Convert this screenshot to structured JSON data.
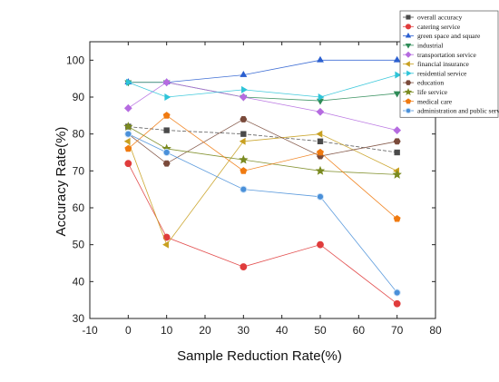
{
  "chart_data": {
    "type": "line",
    "xlabel": "Sample Reduction Rate(%)",
    "ylabel": "Accuracy Rate(%)",
    "xlim": [
      -10,
      80
    ],
    "ylim": [
      30,
      105
    ],
    "xticks": [
      -10,
      0,
      10,
      20,
      30,
      40,
      50,
      60,
      70,
      80
    ],
    "yticks": [
      30,
      40,
      50,
      60,
      70,
      80,
      90,
      100
    ],
    "legend_position": "top-right",
    "grid": false,
    "x": [
      0,
      10,
      30,
      50,
      70
    ],
    "series": [
      {
        "name": "overall accuracy",
        "color": "#4a4a4a",
        "marker": "square",
        "values": [
          82,
          81,
          80,
          78,
          75
        ]
      },
      {
        "name": "catering service",
        "color": "#e03c3c",
        "marker": "circle",
        "values": [
          72,
          52,
          44,
          50,
          34
        ]
      },
      {
        "name": "green space and square",
        "color": "#2b5fd0",
        "marker": "triangle-up",
        "values": [
          94,
          94,
          96,
          100,
          100
        ]
      },
      {
        "name": "industrial",
        "color": "#2e8b57",
        "marker": "triangle-down",
        "values": [
          94,
          94,
          90,
          89,
          91
        ]
      },
      {
        "name": "transportation service",
        "color": "#b56be0",
        "marker": "diamond",
        "values": [
          87,
          94,
          90,
          86,
          81
        ]
      },
      {
        "name": "financial insurance",
        "color": "#c8a020",
        "marker": "triangle-left",
        "values": [
          78,
          50,
          78,
          80,
          70
        ]
      },
      {
        "name": "residential service",
        "color": "#2ec4d8",
        "marker": "triangle-right",
        "values": [
          94,
          90,
          92,
          90,
          96
        ]
      },
      {
        "name": "education",
        "color": "#7a4a3a",
        "marker": "hexagon",
        "values": [
          80,
          72,
          84,
          74,
          78
        ]
      },
      {
        "name": "life service",
        "color": "#7a8a20",
        "marker": "star",
        "values": [
          82,
          76,
          73,
          70,
          69
        ]
      },
      {
        "name": "medical care",
        "color": "#f07a10",
        "marker": "pentagon",
        "values": [
          76,
          85,
          70,
          75,
          57
        ]
      },
      {
        "name": "administration and public service",
        "color": "#4a90d9",
        "marker": "circle-gradient",
        "values": [
          80,
          75,
          65,
          63,
          37
        ]
      }
    ]
  }
}
